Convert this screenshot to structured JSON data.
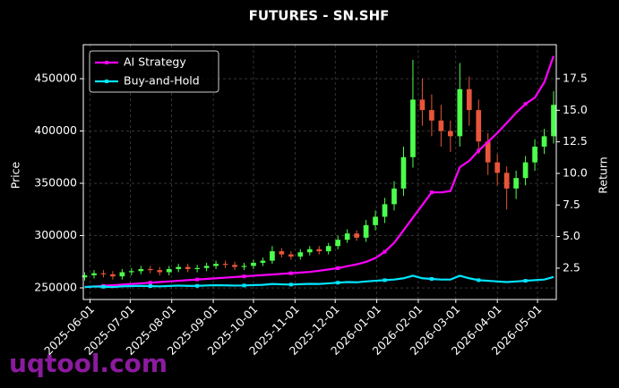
{
  "chart_data": {
    "type": "candlestick",
    "title": "FUTURES - SN.SHF",
    "ylabel": "Price",
    "y2label": "Return",
    "watermark": "uqtool.com",
    "x": [
      "2025-05-28",
      "2025-06-04",
      "2025-06-11",
      "2025-06-18",
      "2025-06-25",
      "2025-07-02",
      "2025-07-09",
      "2025-07-16",
      "2025-07-23",
      "2025-07-30",
      "2025-08-06",
      "2025-08-13",
      "2025-08-20",
      "2025-08-27",
      "2025-09-03",
      "2025-09-10",
      "2025-09-17",
      "2025-09-24",
      "2025-10-01",
      "2025-10-08",
      "2025-10-15",
      "2025-10-22",
      "2025-10-29",
      "2025-11-05",
      "2025-11-12",
      "2025-11-19",
      "2025-11-26",
      "2025-12-03",
      "2025-12-10",
      "2025-12-17",
      "2025-12-24",
      "2025-12-31",
      "2026-01-07",
      "2026-01-14",
      "2026-01-21",
      "2026-01-28",
      "2026-02-04",
      "2026-02-11",
      "2026-02-18",
      "2026-02-25",
      "2026-03-04",
      "2026-03-11",
      "2026-03-18",
      "2026-03-25",
      "2026-04-01",
      "2026-04-08",
      "2026-04-15",
      "2026-04-22",
      "2026-04-29",
      "2026-05-06",
      "2026-05-13"
    ],
    "open": [
      260000,
      262000,
      264000,
      263000,
      261000,
      265000,
      266000,
      268000,
      267000,
      265000,
      268000,
      270000,
      268000,
      269000,
      271000,
      273000,
      272000,
      270000,
      271000,
      274000,
      276000,
      285000,
      282000,
      280000,
      284000,
      287000,
      285000,
      290000,
      296000,
      302000,
      298000,
      310000,
      318000,
      330000,
      345000,
      375000,
      430000,
      420000,
      410000,
      400000,
      395000,
      440000,
      420000,
      390000,
      370000,
      360000,
      345000,
      355000,
      370000,
      385000,
      395000
    ],
    "high": [
      265000,
      267000,
      267000,
      266000,
      268000,
      269000,
      271000,
      271000,
      270000,
      271000,
      273000,
      273000,
      272000,
      274000,
      276000,
      276000,
      275000,
      274000,
      277000,
      279000,
      290000,
      288000,
      285000,
      287000,
      290000,
      290000,
      293000,
      300000,
      306000,
      305000,
      315000,
      324000,
      336000,
      352000,
      385000,
      468000,
      450000,
      435000,
      425000,
      410000,
      465000,
      452000,
      430000,
      398000,
      378000,
      366000,
      362000,
      376000,
      392000,
      402000,
      438000
    ],
    "low": [
      257000,
      259000,
      260000,
      258000,
      258000,
      262000,
      263000,
      264000,
      262000,
      262000,
      265000,
      265000,
      265000,
      266000,
      268000,
      269000,
      267000,
      267000,
      268000,
      271000,
      273000,
      279000,
      277000,
      277000,
      281000,
      282000,
      282000,
      287000,
      293000,
      295000,
      294000,
      305000,
      312000,
      324000,
      338000,
      365000,
      405000,
      395000,
      385000,
      380000,
      385000,
      405000,
      378000,
      358000,
      348000,
      325000,
      335000,
      348000,
      362000,
      378000,
      388000
    ],
    "close": [
      262000,
      264000,
      263000,
      261000,
      265000,
      266000,
      268000,
      267000,
      265000,
      268000,
      270000,
      268000,
      269000,
      271000,
      273000,
      272000,
      270000,
      271000,
      274000,
      276000,
      285000,
      282000,
      280000,
      284000,
      287000,
      285000,
      290000,
      296000,
      302000,
      298000,
      310000,
      318000,
      330000,
      345000,
      375000,
      430000,
      420000,
      410000,
      400000,
      395000,
      440000,
      420000,
      390000,
      370000,
      360000,
      345000,
      355000,
      370000,
      385000,
      395000,
      425000
    ],
    "up_color": "#4cff4c",
    "down_color": "#e8553a",
    "series": [
      {
        "name": "AI Strategy",
        "color": "#ff00ff",
        "axis": "y2",
        "values": [
          1.0,
          1.05,
          1.1,
          1.15,
          1.2,
          1.25,
          1.3,
          1.35,
          1.4,
          1.45,
          1.5,
          1.55,
          1.6,
          1.65,
          1.7,
          1.75,
          1.8,
          1.85,
          1.9,
          1.95,
          2.0,
          2.05,
          2.1,
          2.15,
          2.2,
          2.3,
          2.4,
          2.5,
          2.65,
          2.8,
          3.0,
          3.3,
          3.8,
          4.5,
          5.5,
          6.5,
          7.5,
          8.5,
          8.5,
          8.6,
          10.5,
          11.0,
          11.8,
          12.5,
          13.2,
          14.0,
          14.8,
          15.5,
          16.0,
          17.2,
          19.3
        ]
      },
      {
        "name": "Buy-and-Hold",
        "color": "#00e5ff",
        "axis": "y2",
        "values": [
          1.0,
          1.05,
          1.03,
          1.0,
          1.06,
          1.08,
          1.1,
          1.08,
          1.06,
          1.09,
          1.12,
          1.1,
          1.1,
          1.13,
          1.15,
          1.14,
          1.12,
          1.13,
          1.16,
          1.18,
          1.25,
          1.22,
          1.2,
          1.23,
          1.26,
          1.25,
          1.3,
          1.35,
          1.4,
          1.38,
          1.45,
          1.5,
          1.55,
          1.6,
          1.7,
          1.9,
          1.7,
          1.65,
          1.6,
          1.6,
          1.9,
          1.7,
          1.55,
          1.5,
          1.45,
          1.4,
          1.45,
          1.5,
          1.55,
          1.6,
          1.8
        ]
      }
    ],
    "xlim": [
      "2025-05-27",
      "2026-05-15"
    ],
    "xticks": [
      "2025-06-01",
      "2025-07-01",
      "2025-08-01",
      "2025-09-01",
      "2025-10-01",
      "2025-11-01",
      "2025-12-01",
      "2026-01-01",
      "2026-02-01",
      "2026-03-01",
      "2026-04-01",
      "2026-05-01"
    ],
    "ylim": [
      238900,
      482500
    ],
    "yticks": [
      250000,
      300000,
      350000,
      400000,
      450000
    ],
    "y2lim": [
      0.02,
      20.19
    ],
    "y2ticks": [
      2.5,
      {
        "value": 5,
        "label": "5.0"
      },
      7.5,
      {
        "value": 10,
        "label": "10.0"
      },
      12.5,
      {
        "value": 15,
        "label": "15.0"
      },
      17.5
    ],
    "grid": true,
    "legend": "upper left"
  }
}
